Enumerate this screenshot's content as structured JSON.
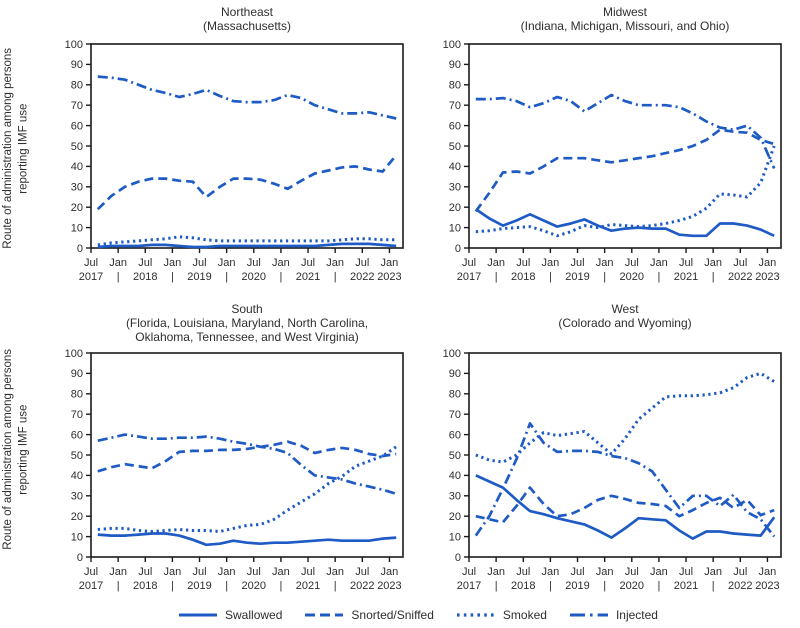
{
  "figure": {
    "y_axis_label_line1": "Route of administration among persons",
    "y_axis_label_line2": "reporting IMF use",
    "accent_color": "#1f5bc4",
    "text_color": "#2e2e2e",
    "frame_color": "#1a1a1a"
  },
  "legend": [
    {
      "label": "Swallowed",
      "style": "solid"
    },
    {
      "label": "Snorted/Sniffed",
      "style": "dashed"
    },
    {
      "label": "Smoked",
      "style": "dotted"
    },
    {
      "label": "Injected",
      "style": "dashdot"
    }
  ],
  "chart_data": [
    {
      "type": "line",
      "title": "Northeast",
      "subtitle_lines": [
        "(Massachusetts)"
      ],
      "ylabel": "Route of administration among persons reporting IMF use",
      "ylim": [
        0,
        100
      ],
      "ytick_step": 10,
      "grid": false,
      "x_ticks_top": [
        "Jul",
        "Jan",
        "Jul",
        "Jan",
        "Jul",
        "Jan",
        "Jul",
        "Jan",
        "Jul",
        "Jan",
        "Jul",
        "Jan"
      ],
      "x_ticks_bottom": [
        "2017",
        "|",
        "2018",
        "|",
        "2019",
        "|",
        "2020",
        "|",
        "2021",
        "|",
        "2022",
        "2023"
      ],
      "x": [
        "Jul 2017",
        "Oct 2017",
        "Jan 2018",
        "Apr 2018",
        "Jul 2018",
        "Oct 2018",
        "Jan 2019",
        "Apr 2019",
        "Jul 2019",
        "Oct 2019",
        "Jan 2020",
        "Apr 2020",
        "Jul 2020",
        "Oct 2020",
        "Jan 2021",
        "Apr 2021",
        "Jul 2021",
        "Oct 2021",
        "Jan 2022",
        "Apr 2022",
        "Jul 2022",
        "Oct 2022",
        "Jan 2023"
      ],
      "series": [
        {
          "name": "Swallowed",
          "style": "solid",
          "values": [
            0.5,
            1,
            1,
            1,
            1.5,
            1.5,
            1,
            0.5,
            0.5,
            1,
            1,
            1,
            1,
            1,
            1,
            1,
            1,
            1.5,
            2,
            2,
            2,
            1.5,
            1
          ]
        },
        {
          "name": "Snorted/Sniffed",
          "style": "dashed",
          "values": [
            19,
            25.5,
            30,
            32.5,
            34,
            34,
            33,
            32.5,
            25,
            30,
            34,
            34,
            33.5,
            31.5,
            29,
            33,
            36.5,
            38,
            39.5,
            40,
            38.5,
            37.5,
            45.5
          ]
        },
        {
          "name": "Smoked",
          "style": "dotted",
          "values": [
            1.5,
            2.5,
            3,
            3.5,
            4,
            4.5,
            5.5,
            5,
            4,
            3.5,
            3.5,
            3.5,
            3.5,
            3.5,
            3.5,
            3.5,
            3.5,
            3.5,
            4,
            4.5,
            4.5,
            4,
            4
          ]
        },
        {
          "name": "Injected",
          "style": "dashdot",
          "values": [
            84,
            83.5,
            82.5,
            80,
            77.5,
            76,
            74,
            75.5,
            77.5,
            74.5,
            72,
            71.5,
            71.5,
            72.5,
            75,
            73.5,
            70,
            68,
            66,
            66,
            66.5,
            65,
            63.5
          ]
        }
      ]
    },
    {
      "type": "line",
      "title": "Midwest",
      "subtitle_lines": [
        "(Indiana, Michigan, Missouri, and Ohio)"
      ],
      "ylim": [
        0,
        100
      ],
      "ytick_step": 10,
      "grid": false,
      "x_ticks_top": [
        "Jul",
        "Jan",
        "Jul",
        "Jan",
        "Jul",
        "Jan",
        "Jul",
        "Jan",
        "Jul",
        "Jan",
        "Jul",
        "Jan"
      ],
      "x_ticks_bottom": [
        "2017",
        "|",
        "2018",
        "|",
        "2019",
        "|",
        "2020",
        "|",
        "2021",
        "|",
        "2022",
        "2023"
      ],
      "x": [
        "Jul 2017",
        "Oct 2017",
        "Jan 2018",
        "Apr 2018",
        "Jul 2018",
        "Oct 2018",
        "Jan 2019",
        "Apr 2019",
        "Jul 2019",
        "Oct 2019",
        "Jan 2020",
        "Apr 2020",
        "Jul 2020",
        "Oct 2020",
        "Jan 2021",
        "Apr 2021",
        "Jul 2021",
        "Oct 2021",
        "Jan 2022",
        "Apr 2022",
        "Jul 2022",
        "Oct 2022",
        "Jan 2023"
      ],
      "series": [
        {
          "name": "Swallowed",
          "style": "solid",
          "values": [
            19,
            14.5,
            11,
            13.5,
            16.5,
            13.5,
            10.5,
            12,
            14,
            11,
            8.5,
            9.5,
            10,
            9.5,
            9.5,
            6.5,
            6,
            6,
            12,
            12,
            11,
            9,
            6
          ]
        },
        {
          "name": "Snorted/Sniffed",
          "style": "dashed",
          "values": [
            18,
            27,
            37,
            37.5,
            36.5,
            40,
            44,
            44,
            44,
            43,
            42,
            43,
            44,
            45,
            46.5,
            48,
            50,
            53,
            58,
            57,
            56.5,
            53,
            51
          ]
        },
        {
          "name": "Smoked",
          "style": "dotted",
          "values": [
            8,
            8.5,
            9.5,
            10,
            10.5,
            8.5,
            6,
            8,
            11,
            10,
            11.5,
            11,
            10.5,
            11,
            12,
            13.5,
            15.5,
            19.5,
            26.5,
            26,
            25,
            32,
            50
          ]
        },
        {
          "name": "Injected",
          "style": "dashdot",
          "values": [
            73,
            73,
            73.5,
            72,
            69,
            71,
            74,
            72,
            67,
            71,
            75,
            72,
            70,
            70,
            70,
            69,
            66,
            62,
            59,
            58,
            60,
            54,
            39
          ]
        }
      ]
    },
    {
      "type": "line",
      "title": "South",
      "subtitle_lines": [
        "(Florida, Louisiana, Maryland, North Carolina,",
        "Oklahoma, Tennessee, and West Virginia)"
      ],
      "ylim": [
        0,
        100
      ],
      "ytick_step": 10,
      "grid": false,
      "x_ticks_top": [
        "Jul",
        "Jan",
        "Jul",
        "Jan",
        "Jul",
        "Jan",
        "Jul",
        "Jan",
        "Jul",
        "Jan",
        "Jul",
        "Jan"
      ],
      "x_ticks_bottom": [
        "2017",
        "|",
        "2018",
        "|",
        "2019",
        "|",
        "2020",
        "|",
        "2021",
        "|",
        "2022",
        "2023"
      ],
      "x": [
        "Jul 2017",
        "Oct 2017",
        "Jan 2018",
        "Apr 2018",
        "Jul 2018",
        "Oct 2018",
        "Jan 2019",
        "Apr 2019",
        "Jul 2019",
        "Oct 2019",
        "Jan 2020",
        "Apr 2020",
        "Jul 2020",
        "Oct 2020",
        "Jan 2021",
        "Apr 2021",
        "Jul 2021",
        "Oct 2021",
        "Jan 2022",
        "Apr 2022",
        "Jul 2022",
        "Oct 2022",
        "Jan 2023"
      ],
      "series": [
        {
          "name": "Swallowed",
          "style": "solid",
          "values": [
            11,
            10.5,
            10.5,
            11,
            11.5,
            11.5,
            10.5,
            8.5,
            6,
            6.5,
            8,
            7,
            6.5,
            7,
            7,
            7.5,
            8,
            8.5,
            8,
            8,
            8,
            9,
            9.5
          ]
        },
        {
          "name": "Snorted/Sniffed",
          "style": "dashed",
          "values": [
            42,
            44,
            45.5,
            44.5,
            43.5,
            47,
            51.5,
            52,
            52,
            52.5,
            52.5,
            53,
            54,
            55,
            56.5,
            54.5,
            51,
            52.5,
            53.5,
            52.5,
            50.5,
            49.5,
            50.5
          ]
        },
        {
          "name": "Smoked",
          "style": "dotted",
          "values": [
            13.5,
            14,
            14,
            13,
            12.5,
            13,
            13.5,
            13,
            13,
            12.5,
            14,
            15.5,
            16,
            18.5,
            23,
            27,
            31,
            36,
            39.5,
            44.5,
            47,
            49.5,
            54
          ]
        },
        {
          "name": "Injected",
          "style": "dashdot",
          "values": [
            57,
            58.5,
            60,
            59,
            58,
            58,
            58.5,
            58.5,
            59,
            58,
            56.5,
            55.5,
            54,
            53,
            51,
            45,
            40,
            39,
            38,
            36,
            34.5,
            33,
            31
          ]
        }
      ]
    },
    {
      "type": "line",
      "title": "West",
      "subtitle_lines": [
        "(Colorado and Wyoming)"
      ],
      "ylim": [
        0,
        100
      ],
      "ytick_step": 10,
      "grid": false,
      "x_ticks_top": [
        "Jul",
        "Jan",
        "Jul",
        "Jan",
        "Jul",
        "Jan",
        "Jul",
        "Jan",
        "Jul",
        "Jan",
        "Jul",
        "Jan"
      ],
      "x_ticks_bottom": [
        "2017",
        "|",
        "2018",
        "|",
        "2019",
        "|",
        "2020",
        "|",
        "2021",
        "|",
        "2022",
        "2023"
      ],
      "x": [
        "Jul 2017",
        "Oct 2017",
        "Jan 2018",
        "Apr 2018",
        "Jul 2018",
        "Oct 2018",
        "Jan 2019",
        "Apr 2019",
        "Jul 2019",
        "Oct 2019",
        "Jan 2020",
        "Apr 2020",
        "Jul 2020",
        "Oct 2020",
        "Jan 2021",
        "Apr 2021",
        "Jul 2021",
        "Oct 2021",
        "Jan 2022",
        "Apr 2022",
        "Jul 2022",
        "Oct 2022",
        "Jan 2023"
      ],
      "series": [
        {
          "name": "Swallowed",
          "style": "solid",
          "values": [
            40,
            37,
            34,
            28,
            22.5,
            21,
            19,
            17.5,
            16,
            13,
            9.5,
            14,
            19,
            18.5,
            18,
            13,
            9,
            12.5,
            12.5,
            11.5,
            11,
            10.5,
            19.5
          ]
        },
        {
          "name": "Snorted/Sniffed",
          "style": "dashed",
          "values": [
            20,
            18.5,
            17,
            25,
            34,
            26,
            20,
            21,
            24,
            28,
            30,
            28.5,
            26.5,
            26,
            25,
            20,
            23,
            26.5,
            29,
            24,
            28,
            20.5,
            23
          ]
        },
        {
          "name": "Smoked",
          "style": "dotted",
          "values": [
            50,
            47.5,
            46.5,
            50,
            56,
            61,
            59.5,
            60.5,
            61.5,
            56,
            50.5,
            58,
            67.5,
            73,
            78.5,
            79,
            79,
            79.5,
            80.5,
            83,
            88,
            90,
            86
          ]
        },
        {
          "name": "Injected",
          "style": "dashdot",
          "values": [
            10.5,
            20,
            33.5,
            48,
            65.5,
            56,
            51.5,
            52,
            52,
            51.5,
            49.5,
            48.5,
            46,
            42,
            33,
            24,
            30,
            30,
            25,
            30.5,
            22,
            18.5,
            10
          ]
        }
      ]
    }
  ]
}
